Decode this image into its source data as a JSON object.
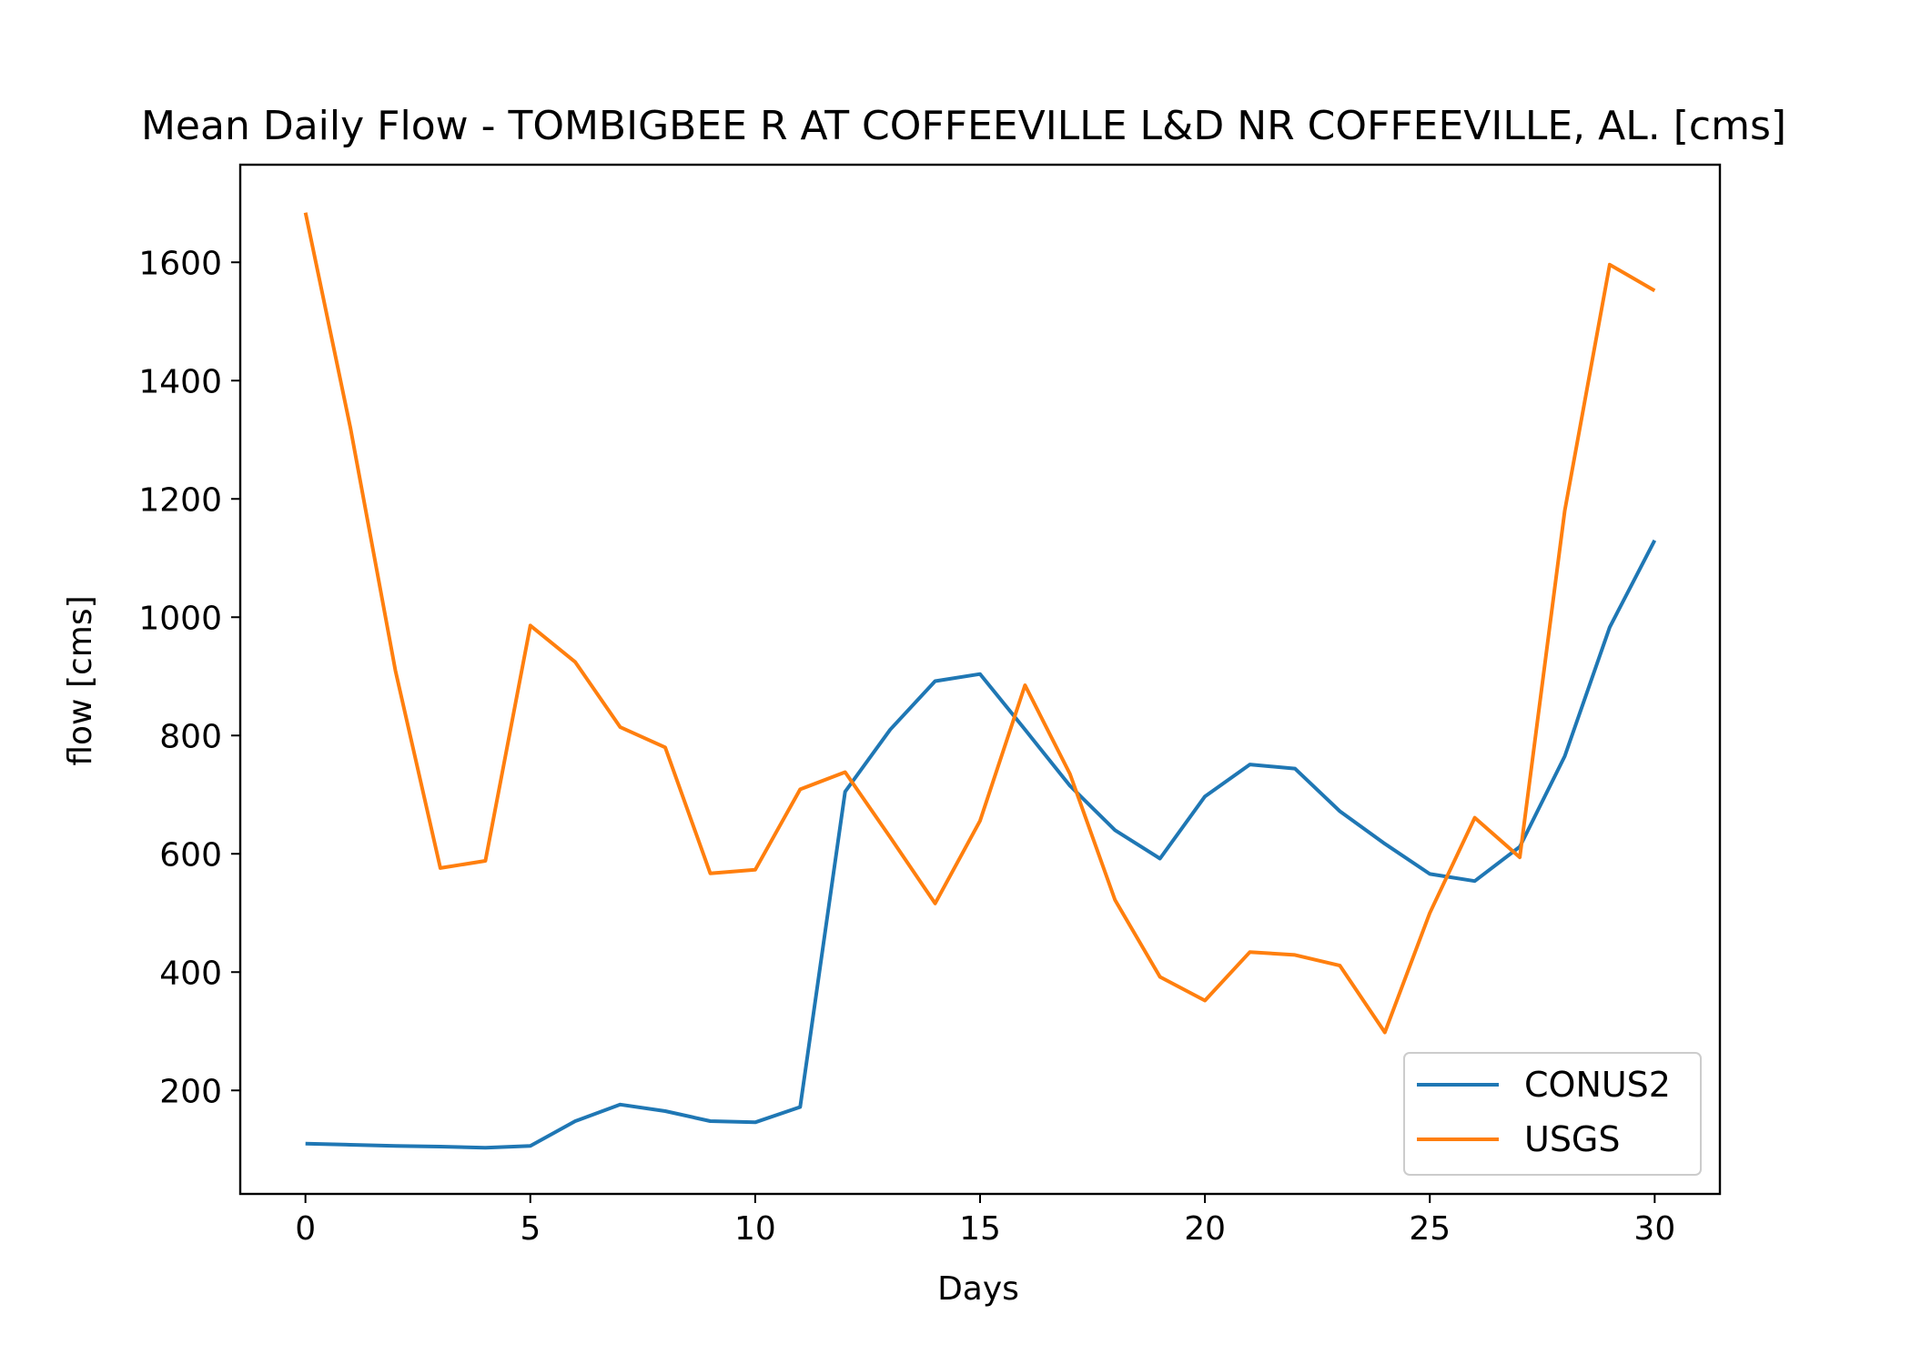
{
  "chart_data": {
    "type": "line",
    "title": "Mean Daily Flow - TOMBIGBEE R AT COFFEEVILLE L&D NR COFFEEVILLE, AL. [cms]",
    "xlabel": "Days",
    "ylabel": "flow [cms]",
    "xlim": [
      -1.45,
      31.45
    ],
    "ylim": [
      25,
      1765
    ],
    "xticks": [
      0,
      5,
      10,
      15,
      20,
      25,
      30
    ],
    "yticks": [
      200,
      400,
      600,
      800,
      1000,
      1200,
      1400,
      1600
    ],
    "grid": false,
    "legend_position": "lower right",
    "x": [
      0,
      1,
      2,
      3,
      4,
      5,
      6,
      7,
      8,
      9,
      10,
      11,
      12,
      13,
      14,
      15,
      16,
      17,
      18,
      19,
      20,
      21,
      22,
      23,
      24,
      25,
      26,
      27,
      28,
      29,
      30
    ],
    "series": [
      {
        "name": "CONUS2",
        "color": "#1f77b4",
        "values": [
          110,
          108,
          106,
          105,
          103,
          106,
          148,
          176,
          165,
          148,
          146,
          172,
          705,
          810,
          892,
          904,
          810,
          715,
          640,
          592,
          697,
          751,
          744,
          672,
          617,
          566,
          554,
          612,
          765,
          983,
          1130
        ]
      },
      {
        "name": "USGS",
        "color": "#ff7f0e",
        "values": [
          1684,
          1320,
          910,
          576,
          588,
          986,
          924,
          814,
          780,
          567,
          573,
          709,
          738,
          628,
          516,
          656,
          885,
          735,
          522,
          392,
          352,
          434,
          429,
          411,
          298,
          500,
          661,
          594,
          1180,
          1596,
          1552
        ]
      }
    ]
  }
}
